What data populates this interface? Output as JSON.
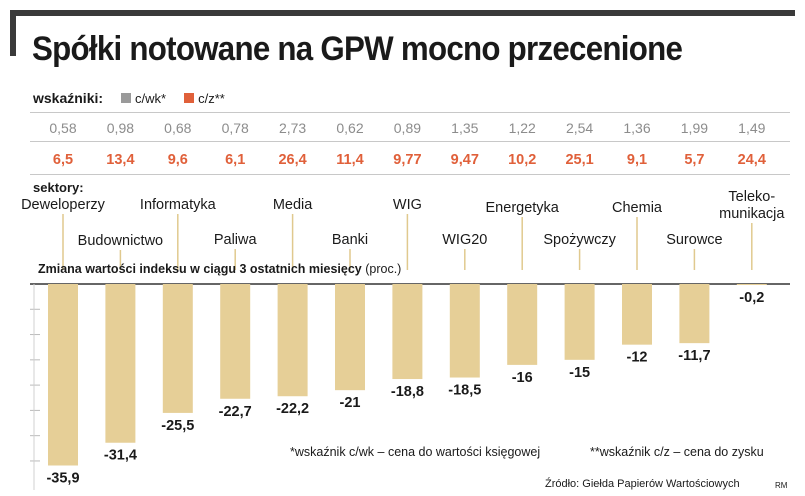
{
  "title": "Spółki notowane na GPW mocno przecenione",
  "legend": {
    "label": "wskaźniki:",
    "items": [
      {
        "name": "c/wk*",
        "color": "#9a9a9a"
      },
      {
        "name": "c/z**",
        "color": "#e0603a"
      }
    ]
  },
  "sectors_label": "sektory:",
  "caption_bold": "Zmiana wartości indeksu w ciągu 3 ostatnich miesięcy",
  "caption_unit": "(proc.)",
  "footnote_cwk": "*wskaźnik c/wk – cena do wartości księgowej",
  "footnote_cz": "**wskaźnik c/z – cena do zysku",
  "source": "Źródło: Giełda Papierów Wartościowych",
  "initials": "RM",
  "colors": {
    "bar": "#e6cf97",
    "cwk": "#8c8c8c",
    "cz": "#e0603a",
    "guide": "#e0c98e"
  },
  "chart_data": {
    "type": "bar",
    "title": "Zmiana wartości indeksu w ciągu 3 ostatnich miesięcy (proc.)",
    "categories": [
      "Deweloperzy",
      "Budownictwo",
      "Informatyka",
      "Paliwa",
      "Media",
      "Banki",
      "WIG",
      "WIG20",
      "Energetyka",
      "Spożywczy",
      "Chemia",
      "Surowce",
      "Teleko-\nmunikacja"
    ],
    "values": [
      -35.9,
      -31.4,
      -25.5,
      -22.7,
      -22.2,
      -21,
      -18.8,
      -18.5,
      -16,
      -15,
      -12,
      -11.7,
      -0.2
    ],
    "value_labels": [
      "-35,9",
      "-31,4",
      "-25,5",
      "-22,7",
      "-22,2",
      "-21",
      "-18,8",
      "-18,5",
      "-16",
      "-15",
      "-12",
      "-11,7",
      "-0,2"
    ],
    "cwk": [
      "0,58",
      "0,98",
      "0,68",
      "0,78",
      "2,73",
      "0,62",
      "0,89",
      "1,35",
      "1,22",
      "2,54",
      "1,36",
      "1,99",
      "1,49"
    ],
    "cz": [
      "6,5",
      "13,4",
      "9,6",
      "6,1",
      "26,4",
      "11,4",
      "9,77",
      "9,47",
      "10,2",
      "25,1",
      "9,1",
      "5,7",
      "24,4"
    ],
    "ylim": [
      -36,
      0
    ],
    "grid": true
  }
}
